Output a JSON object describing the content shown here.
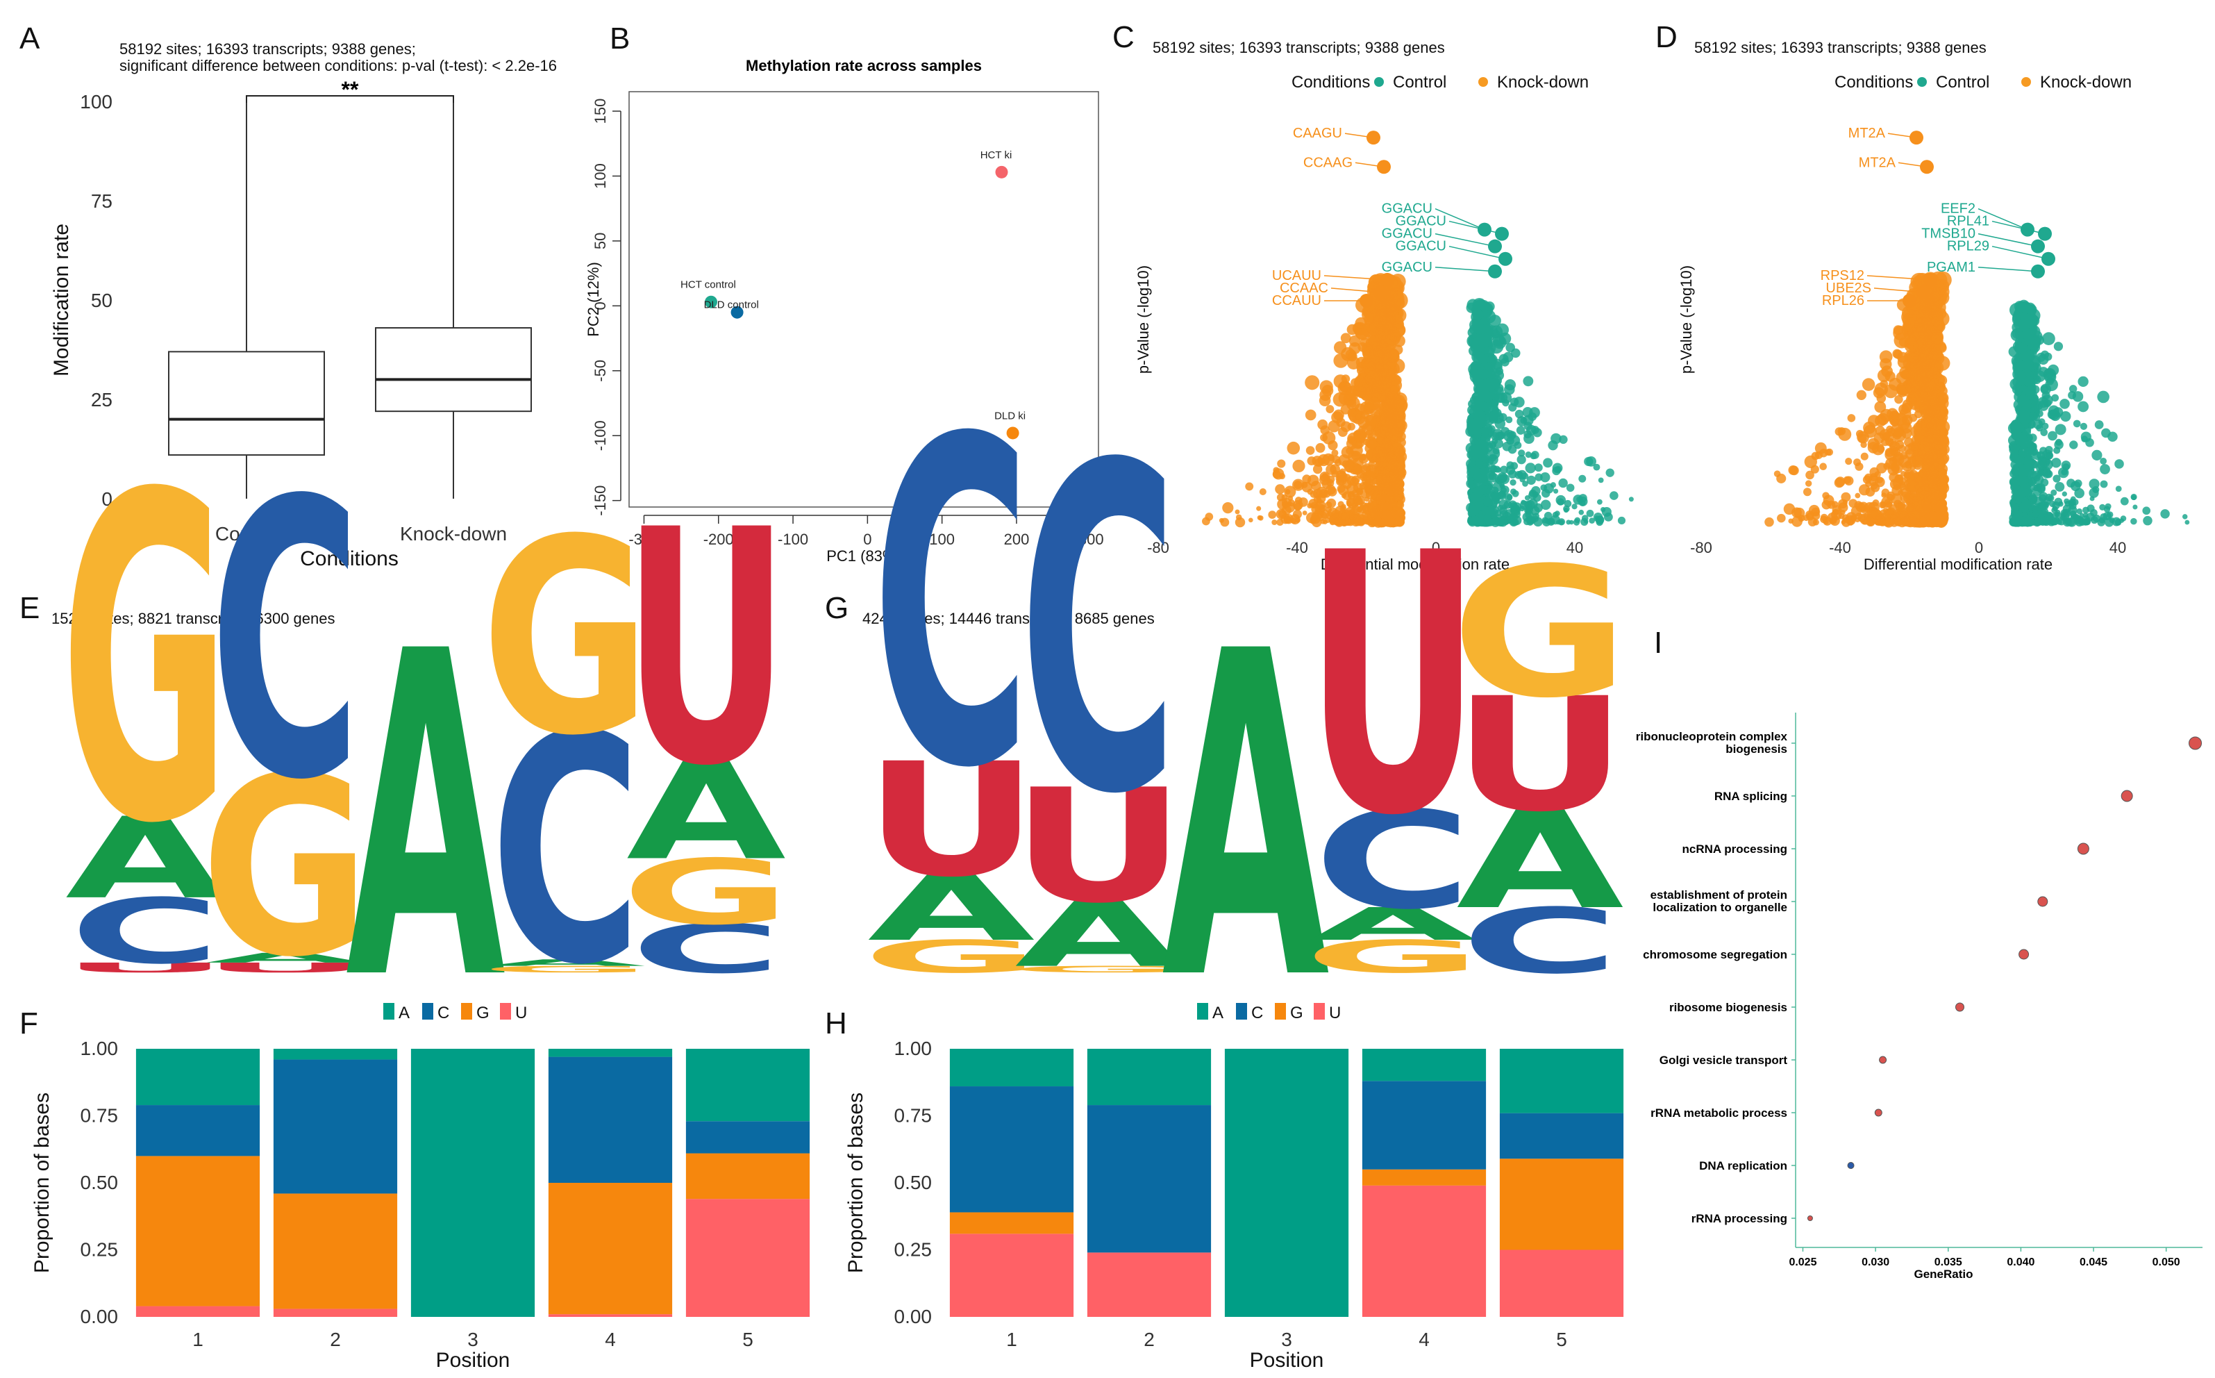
{
  "colors": {
    "A": "#159a48",
    "C": "#255ba6",
    "G": "#f7b330",
    "U": "#d42a3d",
    "barA": "#009e86",
    "barC": "#0a6aa2",
    "barG": "#f6870d",
    "barU": "#ff6166",
    "control": "#1fa88f",
    "knockdown": "#f69a22",
    "sigpos": "#1fa88f",
    "signeg": "#f6901c"
  },
  "panels": {
    "A": {
      "letter": "A",
      "sub1": "58192 sites; 16393 transcripts; 9388 genes;",
      "sub2": "significant difference between conditions: p-val (t-test): < 2.2e-16"
    },
    "B": {
      "letter": "B"
    },
    "C": {
      "letter": "C",
      "sub1": "58192 sites; 16393 transcripts; 9388 genes"
    },
    "D": {
      "letter": "D",
      "sub1": "58192 sites; 16393 transcripts; 9388 genes"
    },
    "E": {
      "letter": "E",
      "sub1": "15299 sites; 8821 transcripts; 6300 genes"
    },
    "F": {
      "letter": "F"
    },
    "G": {
      "letter": "G",
      "sub1": "42416 sites; 14446 transcripts; 8685 genes"
    },
    "H": {
      "letter": "H"
    },
    "I": {
      "letter": "I"
    }
  },
  "chart_data": [
    {
      "panel": "A",
      "type": "box",
      "categories": [
        "Control",
        "Knock-down"
      ],
      "xlabel": "Conditions",
      "ylabel": "Modification rate",
      "yticks": [
        "0",
        "25",
        "50",
        "75",
        "100"
      ],
      "ylim": [
        0,
        100
      ],
      "boxes": [
        {
          "name": "Control",
          "min": 0,
          "q1": 11,
          "median": 20,
          "q3": 37,
          "max": 100
        },
        {
          "name": "Knock-down",
          "min": 0,
          "q1": 22,
          "median": 30,
          "q3": 43,
          "max": 100
        }
      ],
      "annotation": "**"
    },
    {
      "panel": "B",
      "type": "scatter",
      "title": "Methylation rate across samples",
      "xlabel": "PC1 (83%)",
      "ylabel": "PC2 (12%)",
      "xticks": [
        "-300",
        "-200",
        "-100",
        "0",
        "100",
        "200",
        "300"
      ],
      "yticks": [
        "-150",
        "-100",
        "-50",
        "0",
        "50",
        "100",
        "150"
      ],
      "xlim": [
        -320,
        310
      ],
      "ylim": [
        -155,
        165
      ],
      "points": [
        {
          "label": "HCT ki",
          "x": 180,
          "y": 103,
          "color": "#f4646a"
        },
        {
          "label": "HCT control",
          "x": -210,
          "y": 3,
          "color": "#1fa88f"
        },
        {
          "label": "DLD control",
          "x": -175,
          "y": -5,
          "color": "#0a6aa2"
        },
        {
          "label": "DLD ki",
          "x": 195,
          "y": -98,
          "color": "#f6870d"
        }
      ]
    },
    {
      "panel": "C",
      "type": "volcano",
      "xlabel": "Differential modification rate",
      "ylabel": "p-Value (-log10)",
      "xticks": [
        "-80",
        "-40",
        "0",
        "40"
      ],
      "xlim": [
        -80,
        72
      ],
      "legend": {
        "title": "Conditions",
        "items": [
          "Control",
          "Knock-down"
        ]
      },
      "labels": [
        {
          "text": "CAAGU",
          "x": -18,
          "y": 92,
          "side": "neg"
        },
        {
          "text": "CCAAG",
          "x": -15,
          "y": 85,
          "side": "neg"
        },
        {
          "text": "GGACU",
          "x": 14,
          "y": 70,
          "side": "pos"
        },
        {
          "text": "GGACU",
          "x": 19,
          "y": 69,
          "side": "pos"
        },
        {
          "text": "GGACU",
          "x": 17,
          "y": 66,
          "side": "pos"
        },
        {
          "text": "GGACU",
          "x": 20,
          "y": 63,
          "side": "pos"
        },
        {
          "text": "GGACU",
          "x": 17,
          "y": 60,
          "side": "pos"
        },
        {
          "text": "UCAUU",
          "x": -14,
          "y": 58,
          "side": "neg"
        },
        {
          "text": "CCAAC",
          "x": -16,
          "y": 55,
          "side": "neg"
        },
        {
          "text": "CCAUU",
          "x": -20,
          "y": 53,
          "side": "neg"
        }
      ]
    },
    {
      "panel": "D",
      "type": "volcano",
      "xlabel": "Differential modification rate",
      "ylabel": "p-Value (-log10)",
      "xticks": [
        "-80",
        "-40",
        "0",
        "40"
      ],
      "xlim": [
        -80,
        72
      ],
      "legend": {
        "title": "Conditions",
        "items": [
          "Control",
          "Knock-down"
        ]
      },
      "labels": [
        {
          "text": "MT2A",
          "x": -18,
          "y": 92,
          "side": "neg"
        },
        {
          "text": "MT2A",
          "x": -15,
          "y": 85,
          "side": "neg"
        },
        {
          "text": "EEF2",
          "x": 14,
          "y": 70,
          "side": "pos"
        },
        {
          "text": "RPL41",
          "x": 19,
          "y": 69,
          "side": "pos"
        },
        {
          "text": "TMSB10",
          "x": 17,
          "y": 66,
          "side": "pos"
        },
        {
          "text": "RPL29",
          "x": 20,
          "y": 63,
          "side": "pos"
        },
        {
          "text": "PGAM1",
          "x": 17,
          "y": 60,
          "side": "pos"
        },
        {
          "text": "RPS12",
          "x": -14,
          "y": 58,
          "side": "neg"
        },
        {
          "text": "UBE2S",
          "x": -16,
          "y": 55,
          "side": "neg"
        },
        {
          "text": "RPL26",
          "x": -20,
          "y": 53,
          "side": "neg"
        }
      ]
    },
    {
      "panel": "E",
      "type": "sequence-logo",
      "positions": [
        [
          [
            "U",
            0.03
          ],
          [
            "C",
            0.2
          ],
          [
            "A",
            0.25
          ],
          [
            "G",
            1.0
          ]
        ],
        [
          [
            "U",
            0.03
          ],
          [
            "A",
            0.03
          ],
          [
            "G",
            0.55
          ],
          [
            "C",
            0.85
          ]
        ],
        [
          [
            "A",
            1.0
          ]
        ],
        [
          [
            "G",
            0.02
          ],
          [
            "A",
            0.02
          ],
          [
            "C",
            0.7
          ],
          [
            "G",
            0.6
          ]
        ],
        [
          [
            "C",
            0.15
          ],
          [
            "G",
            0.2
          ],
          [
            "A",
            0.3
          ],
          [
            "U",
            0.72
          ]
        ]
      ]
    },
    {
      "panel": "G",
      "type": "sequence-logo",
      "positions": [
        [
          [
            "G",
            0.1
          ],
          [
            "A",
            0.2
          ],
          [
            "U",
            0.35
          ],
          [
            "C",
            1.0
          ]
        ],
        [
          [
            "G",
            0.02
          ],
          [
            "A",
            0.2
          ],
          [
            "U",
            0.35
          ],
          [
            "C",
            1.0
          ]
        ],
        [
          [
            "A",
            1.0
          ]
        ],
        [
          [
            "G",
            0.1
          ],
          [
            "A",
            0.1
          ],
          [
            "C",
            0.3
          ],
          [
            "U",
            0.8
          ]
        ],
        [
          [
            "C",
            0.2
          ],
          [
            "A",
            0.3
          ],
          [
            "U",
            0.35
          ],
          [
            "G",
            0.4
          ]
        ]
      ]
    },
    {
      "panel": "F",
      "type": "stacked-bar",
      "categories": [
        "1",
        "2",
        "3",
        "4",
        "5"
      ],
      "xlabel": "Position",
      "ylabel": "Proportion of bases",
      "yticks": [
        "0.00",
        "0.25",
        "0.50",
        "0.75",
        "1.00"
      ],
      "ylim": [
        0,
        1
      ],
      "legend": [
        "A",
        "C",
        "G",
        "U"
      ],
      "series": [
        {
          "name": "U",
          "values": [
            0.04,
            0.03,
            0.0,
            0.01,
            0.44
          ]
        },
        {
          "name": "G",
          "values": [
            0.56,
            0.43,
            0.0,
            0.49,
            0.17
          ]
        },
        {
          "name": "C",
          "values": [
            0.19,
            0.5,
            0.0,
            0.47,
            0.12
          ]
        },
        {
          "name": "A",
          "values": [
            0.21,
            0.04,
            1.0,
            0.03,
            0.27
          ]
        }
      ]
    },
    {
      "panel": "H",
      "type": "stacked-bar",
      "categories": [
        "1",
        "2",
        "3",
        "4",
        "5"
      ],
      "xlabel": "Position",
      "ylabel": "Proportion of bases",
      "yticks": [
        "0.00",
        "0.25",
        "0.50",
        "0.75",
        "1.00"
      ],
      "ylim": [
        0,
        1
      ],
      "legend": [
        "A",
        "C",
        "G",
        "U"
      ],
      "series": [
        {
          "name": "U",
          "values": [
            0.31,
            0.24,
            0.0,
            0.49,
            0.25
          ]
        },
        {
          "name": "G",
          "values": [
            0.08,
            0.0,
            0.0,
            0.06,
            0.34
          ]
        },
        {
          "name": "C",
          "values": [
            0.47,
            0.55,
            0.0,
            0.33,
            0.17
          ]
        },
        {
          "name": "A",
          "values": [
            0.14,
            0.21,
            1.0,
            0.12,
            0.24
          ]
        }
      ]
    },
    {
      "panel": "I",
      "type": "dot",
      "xlabel": "GeneRatio",
      "xticks": [
        "0.025",
        "0.030",
        "0.035",
        "0.040",
        "0.045",
        "0.050"
      ],
      "xlim": [
        0.0245,
        0.0525
      ],
      "terms": [
        {
          "label": "ribonucleoprotein complex biogenesis",
          "lines": [
            "ribonucleoprotein complex",
            "biogenesis"
          ],
          "x": 0.052,
          "size": 9,
          "color": "#d9534f"
        },
        {
          "label": "RNA splicing",
          "lines": [
            "RNA splicing"
          ],
          "x": 0.0473,
          "size": 8,
          "color": "#d9534f"
        },
        {
          "label": "ncRNA processing",
          "lines": [
            "ncRNA processing"
          ],
          "x": 0.0443,
          "size": 8,
          "color": "#d9534f"
        },
        {
          "label": "establishment of protein localization to organelle",
          "lines": [
            "establishment of protein",
            "localization to organelle"
          ],
          "x": 0.0415,
          "size": 7,
          "color": "#d9534f"
        },
        {
          "label": "chromosome segregation",
          "lines": [
            "chromosome segregation"
          ],
          "x": 0.0402,
          "size": 7,
          "color": "#d9534f"
        },
        {
          "label": "ribosome biogenesis",
          "lines": [
            "ribosome biogenesis"
          ],
          "x": 0.0358,
          "size": 6,
          "color": "#d9534f"
        },
        {
          "label": "Golgi vesicle transport",
          "lines": [
            "Golgi vesicle transport"
          ],
          "x": 0.0305,
          "size": 5,
          "color": "#d9534f"
        },
        {
          "label": "rRNA metabolic process",
          "lines": [
            "rRNA metabolic process"
          ],
          "x": 0.0302,
          "size": 5,
          "color": "#d9534f"
        },
        {
          "label": "DNA replication",
          "lines": [
            "DNA replication"
          ],
          "x": 0.0283,
          "size": 4.5,
          "color": "#2a5aa8"
        },
        {
          "label": "rRNA processing",
          "lines": [
            "rRNA processing"
          ],
          "x": 0.0255,
          "size": 3.5,
          "color": "#d9534f"
        }
      ]
    }
  ]
}
